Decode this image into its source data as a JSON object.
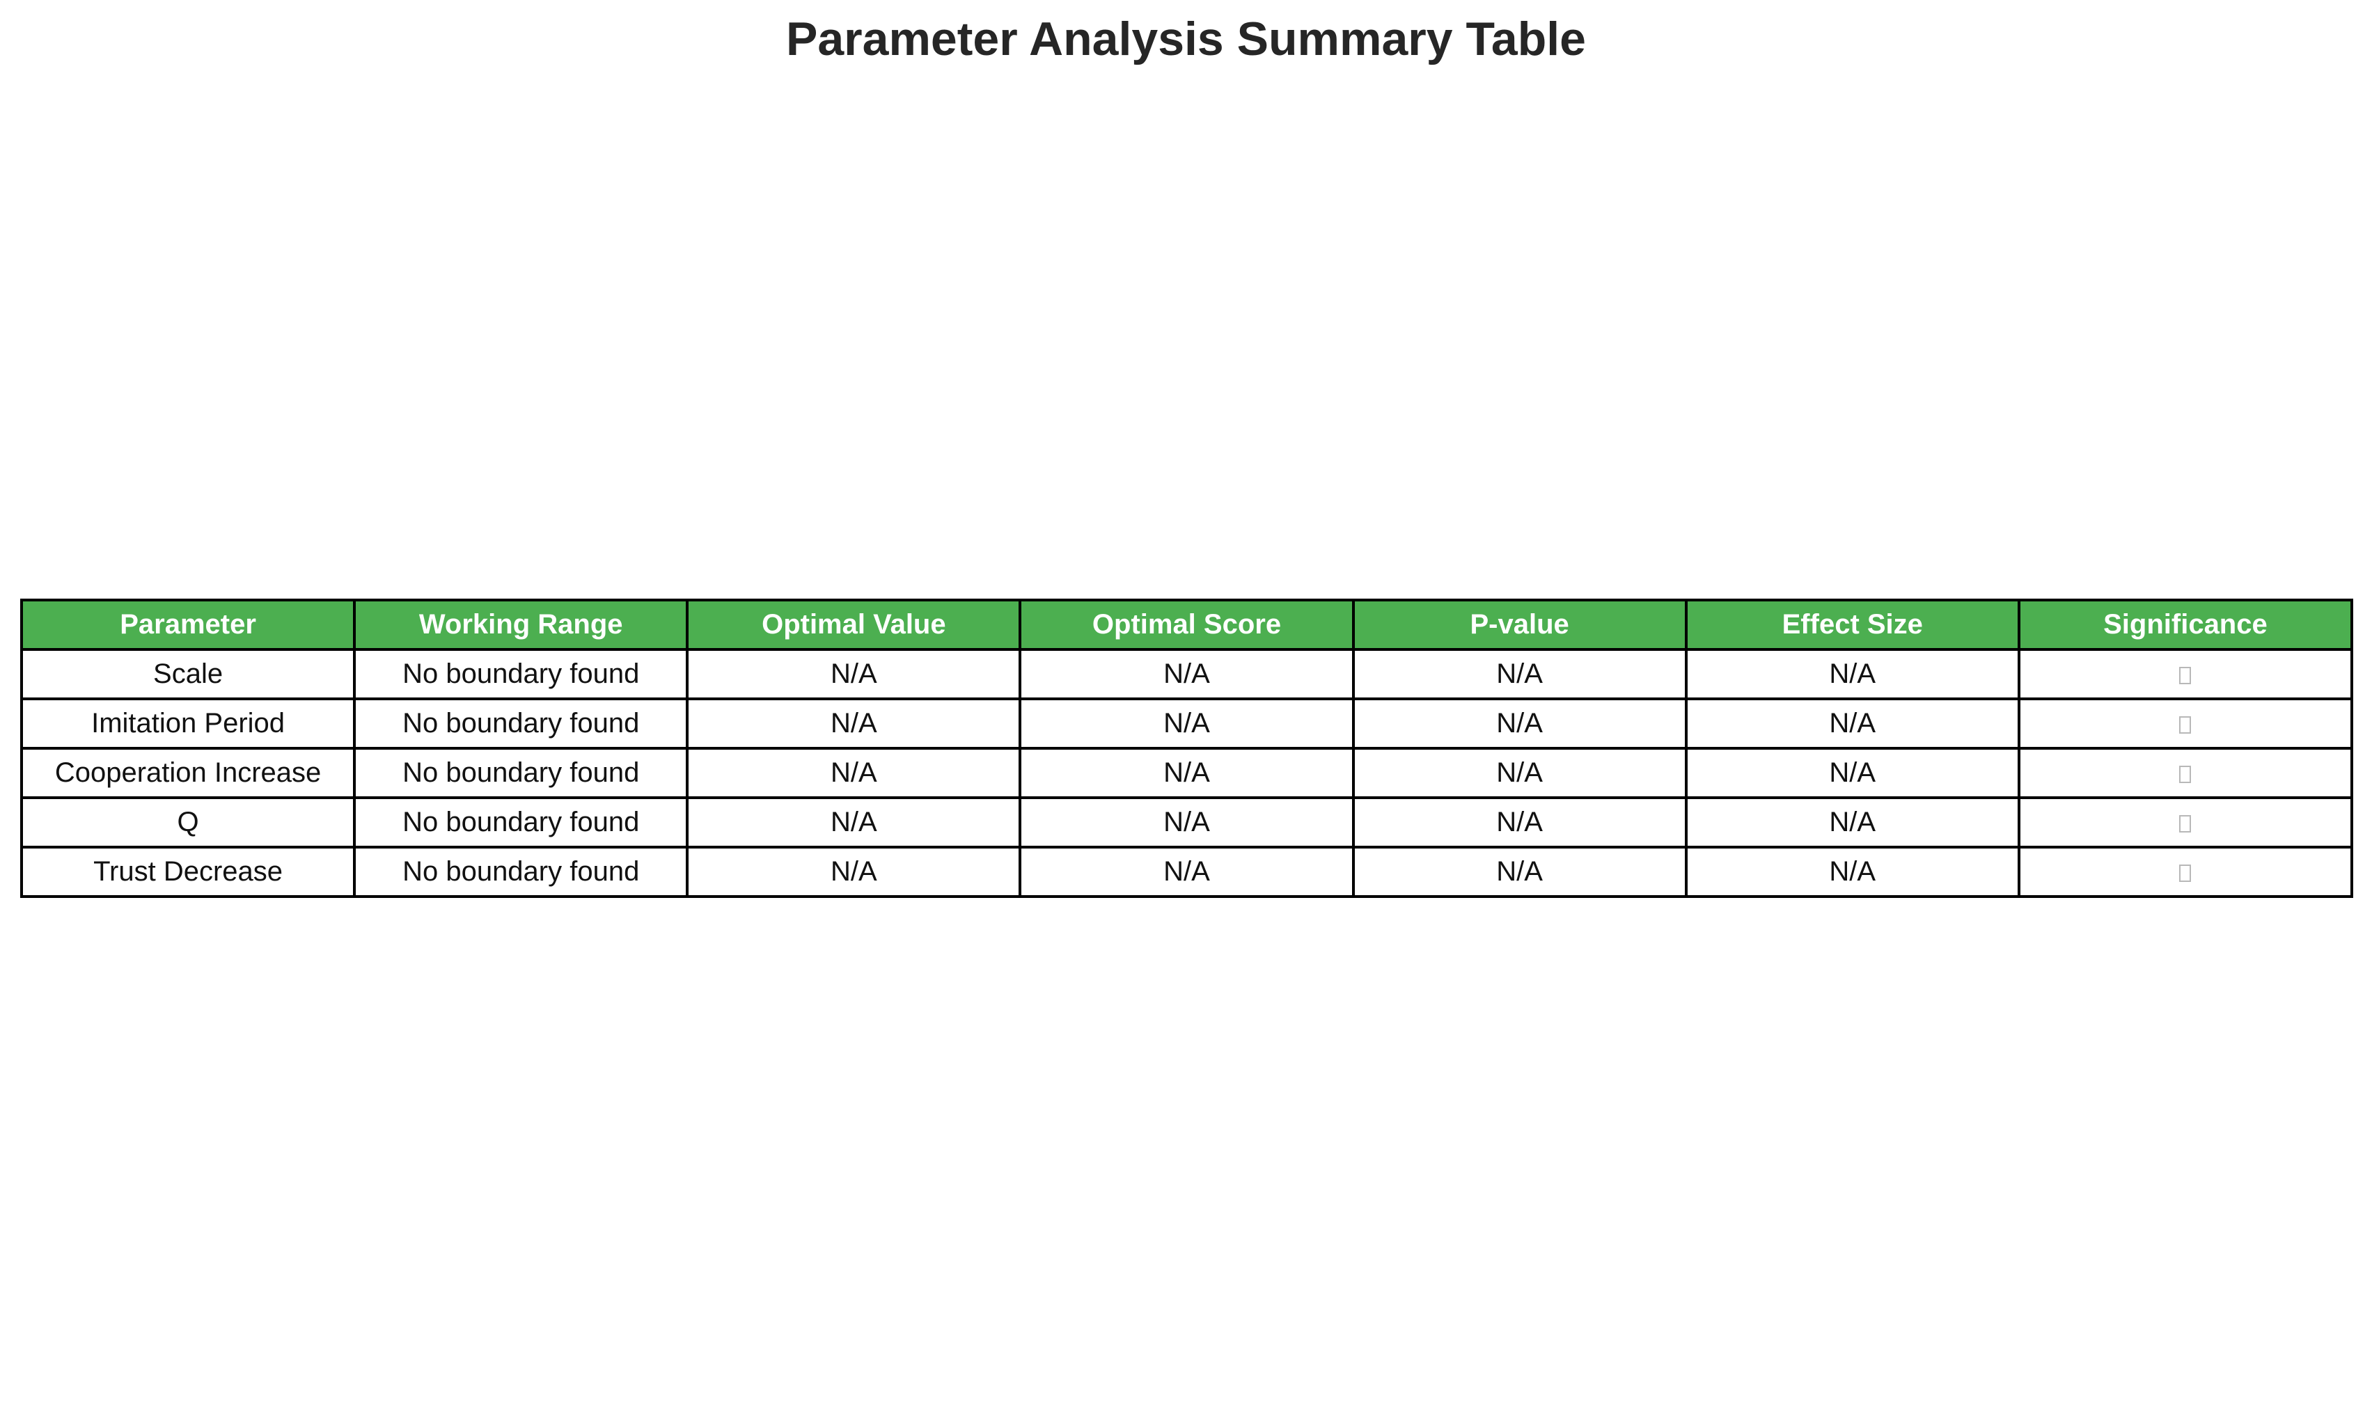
{
  "chart_data": {
    "type": "table",
    "title": "Parameter Analysis Summary Table",
    "columns": [
      "Parameter",
      "Working Range",
      "Optimal Value",
      "Optimal Score",
      "P-value",
      "Effect Size",
      "Significance"
    ],
    "rows": [
      [
        "Scale",
        "No boundary found",
        "N/A",
        "N/A",
        "N/A",
        "N/A",
        "□"
      ],
      [
        "Imitation Period",
        "No boundary found",
        "N/A",
        "N/A",
        "N/A",
        "N/A",
        "□"
      ],
      [
        "Cooperation Increase",
        "No boundary found",
        "N/A",
        "N/A",
        "N/A",
        "N/A",
        "□"
      ],
      [
        "Q",
        "No boundary found",
        "N/A",
        "N/A",
        "N/A",
        "N/A",
        "□"
      ],
      [
        "Trust Decrease",
        "No boundary found",
        "N/A",
        "N/A",
        "N/A",
        "N/A",
        "□"
      ]
    ],
    "header_color": "#4caf50",
    "header_text_color": "#ffffff",
    "border_color": "#000000"
  }
}
